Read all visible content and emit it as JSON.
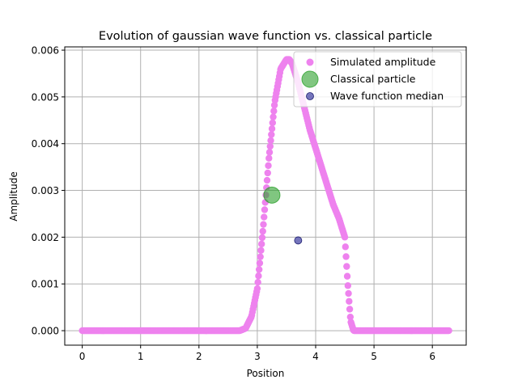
{
  "chart_data": {
    "type": "scatter",
    "title": "Evolution of gaussian wave function vs. classical particle",
    "xlabel": "Position",
    "ylabel": "Amplitude",
    "xlim": [
      -0.3,
      6.58
    ],
    "ylim": [
      -0.00031,
      0.00607
    ],
    "x_ticks": [
      0,
      1,
      2,
      3,
      4,
      5,
      6
    ],
    "x_tick_labels": [
      "0",
      "1",
      "2",
      "3",
      "4",
      "5",
      "6"
    ],
    "y_ticks": [
      0.0,
      0.001,
      0.002,
      0.003,
      0.004,
      0.005,
      0.006
    ],
    "y_tick_labels": [
      "0.000",
      "0.001",
      "0.002",
      "0.003",
      "0.004",
      "0.005",
      "0.006"
    ],
    "grid": true,
    "legend_position": "top-right",
    "series": [
      {
        "name": "Simulated amplitude",
        "color": "#ee82ee",
        "x_range": [
          0,
          6.283
        ],
        "n_points": 600,
        "curve_x": [
          0,
          2.7,
          2.8,
          2.9,
          3.0,
          3.1,
          3.2,
          3.3,
          3.4,
          3.5,
          3.55,
          3.6,
          3.7,
          3.8,
          3.9,
          4.0,
          4.1,
          4.2,
          4.3,
          4.4,
          4.5,
          4.55,
          4.6,
          4.65,
          6.283
        ],
        "curve_y": [
          0,
          0,
          5e-05,
          0.0003,
          0.0009,
          0.0022,
          0.0037,
          0.0049,
          0.0056,
          0.0058,
          0.0058,
          0.0057,
          0.0053,
          0.0048,
          0.0043,
          0.0039,
          0.0035,
          0.0031,
          0.0027,
          0.0024,
          0.002,
          0.001,
          0.0002,
          0,
          0
        ]
      },
      {
        "name": "Classical particle",
        "color": "#2ca02c",
        "points": [
          {
            "x": 3.25,
            "y": 0.0029
          }
        ]
      },
      {
        "name": "Wave function median",
        "color": "#3a3aa0",
        "points": [
          {
            "x": 3.7,
            "y": 0.00193
          }
        ]
      }
    ]
  }
}
